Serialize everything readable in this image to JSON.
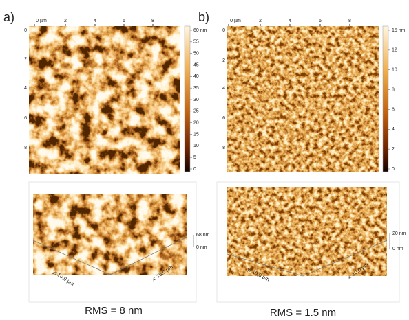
{
  "panels": [
    {
      "label": "a)",
      "x_axis": {
        "ticks": [
          "0 µm",
          "2",
          "4",
          "6",
          "8"
        ]
      },
      "y_axis": {
        "ticks": [
          "0",
          "2",
          "4",
          "6",
          "8"
        ]
      },
      "colorbar": {
        "ticks": [
          "60 nm",
          "55",
          "50",
          "45",
          "40",
          "35",
          "30",
          "25",
          "20",
          "15",
          "10",
          "5",
          "0"
        ]
      },
      "surface_3d": {
        "z_max": "68 nm",
        "z_min": "0 nm",
        "x_label": "x: 10,0 µm",
        "y_label": "y: 10,0 µm"
      },
      "caption": "RMS = 8 nm"
    },
    {
      "label": "b)",
      "x_axis": {
        "ticks": [
          "0 µm",
          "2",
          "4",
          "6",
          "8"
        ]
      },
      "y_axis": {
        "ticks": [
          "0",
          "2",
          "4",
          "6",
          "8"
        ]
      },
      "colorbar": {
        "ticks": [
          "15 nm",
          "12",
          "10",
          "8",
          "6",
          "4",
          "2",
          "0"
        ]
      },
      "surface_3d": {
        "z_max": "20 nm",
        "z_min": "0 nm",
        "x_label": "x: 10,0 µm",
        "y_label": "y: 10,0 µm"
      },
      "caption": "RMS = 1.5 nm"
    }
  ]
}
